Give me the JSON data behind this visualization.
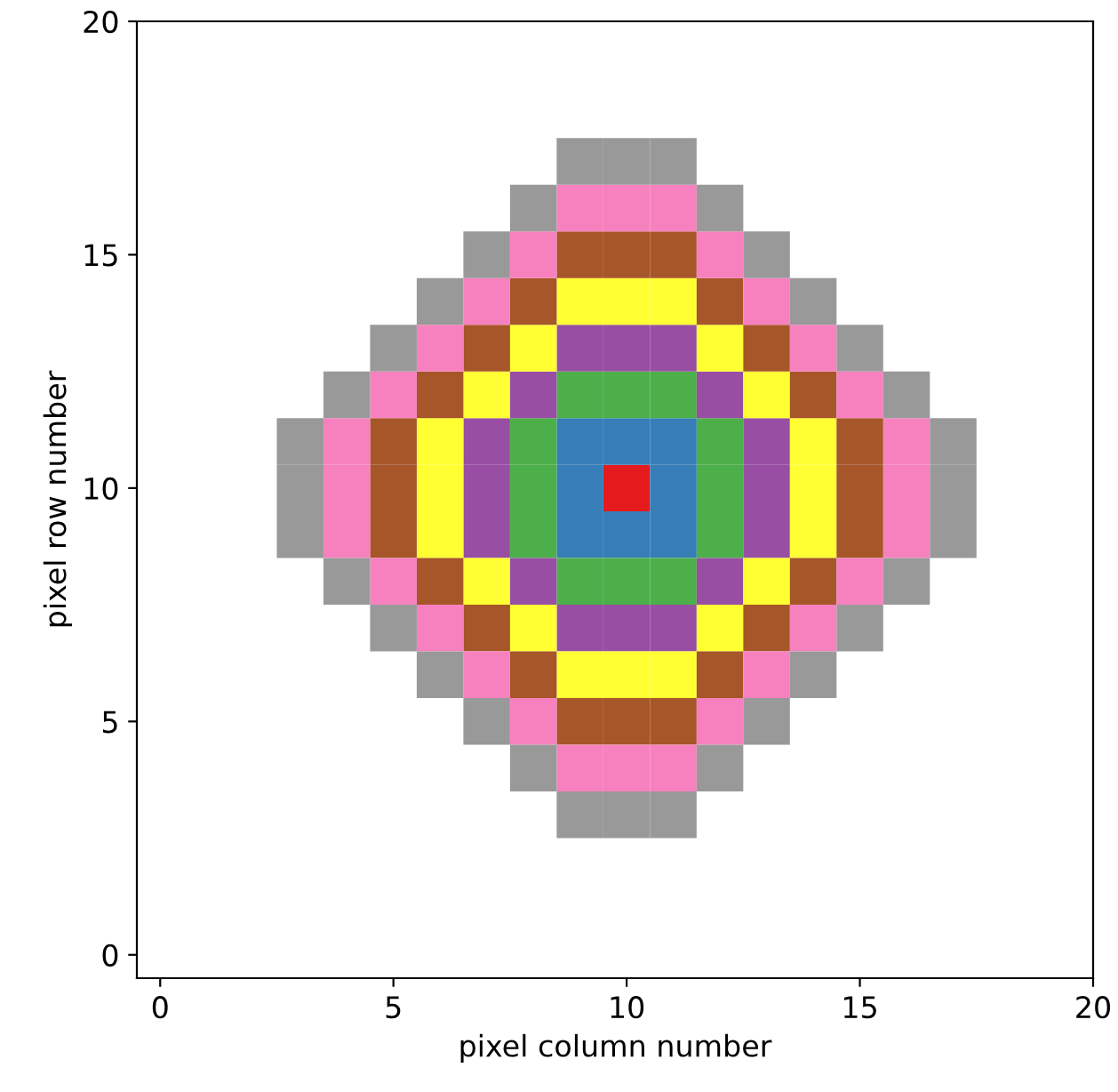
{
  "chart_data": {
    "type": "scatter",
    "xlabel": "pixel column number",
    "ylabel": "pixel row number",
    "xlim": [
      -0.5,
      20
    ],
    "ylim": [
      -0.5,
      20
    ],
    "xticks": [
      0,
      5,
      10,
      15,
      20
    ],
    "yticks": [
      0,
      5,
      10,
      15,
      20
    ],
    "marker": "square",
    "series": [
      {
        "color": "#e41a1c",
        "x": [
          10
        ],
        "values": [
          10
        ]
      },
      {
        "color": "#377eb8",
        "x": [
          9,
          10,
          11,
          9,
          11,
          9,
          10,
          11
        ],
        "values": [
          9,
          9,
          9,
          10,
          10,
          11,
          11,
          11
        ]
      },
      {
        "color": "#4daf4a",
        "x": [
          9,
          10,
          11,
          9,
          10,
          11,
          8,
          12,
          8,
          12,
          8,
          12
        ],
        "values": [
          12,
          12,
          12,
          8,
          8,
          8,
          9,
          9,
          10,
          10,
          11,
          11
        ]
      },
      {
        "color": "#984ea3",
        "x": [
          9,
          10,
          11,
          9,
          10,
          11,
          8,
          12,
          8,
          12,
          7,
          13,
          7,
          13,
          7,
          13
        ],
        "values": [
          13,
          13,
          13,
          7,
          7,
          7,
          12,
          12,
          8,
          8,
          9,
          9,
          10,
          10,
          11,
          11
        ]
      },
      {
        "color": "#ffff33",
        "x": [
          9,
          10,
          11,
          9,
          10,
          11,
          8,
          12,
          8,
          12,
          7,
          13,
          7,
          13,
          6,
          14,
          6,
          14,
          6,
          14
        ],
        "values": [
          14,
          14,
          14,
          6,
          6,
          6,
          13,
          13,
          7,
          7,
          12,
          12,
          8,
          8,
          9,
          9,
          10,
          10,
          11,
          11
        ]
      },
      {
        "color": "#a65628",
        "x": [
          9,
          10,
          11,
          9,
          10,
          11,
          8,
          12,
          8,
          12,
          7,
          13,
          7,
          13,
          6,
          14,
          6,
          14,
          5,
          15,
          5,
          15,
          5,
          15
        ],
        "values": [
          15,
          15,
          15,
          5,
          5,
          5,
          14,
          14,
          6,
          6,
          13,
          13,
          7,
          7,
          12,
          12,
          8,
          8,
          9,
          9,
          10,
          10,
          11,
          11
        ]
      },
      {
        "color": "#f781bf",
        "x": [
          9,
          10,
          11,
          9,
          10,
          11,
          8,
          12,
          8,
          12,
          7,
          13,
          7,
          13,
          6,
          14,
          6,
          14,
          5,
          15,
          5,
          15,
          4,
          16,
          4,
          16,
          4,
          16
        ],
        "values": [
          16,
          16,
          16,
          4,
          4,
          4,
          15,
          15,
          5,
          5,
          14,
          14,
          6,
          6,
          13,
          13,
          7,
          7,
          12,
          12,
          8,
          8,
          9,
          9,
          10,
          10,
          11,
          11
        ]
      },
      {
        "color": "#999999",
        "x": [
          9,
          10,
          11,
          9,
          10,
          11,
          8,
          12,
          8,
          12,
          7,
          13,
          7,
          13,
          6,
          14,
          6,
          14,
          5,
          15,
          5,
          15,
          4,
          16,
          4,
          16,
          3,
          17,
          3,
          17,
          3,
          17
        ],
        "values": [
          17,
          17,
          17,
          3,
          3,
          3,
          16,
          16,
          4,
          4,
          15,
          15,
          5,
          5,
          14,
          14,
          6,
          6,
          13,
          13,
          7,
          7,
          12,
          12,
          8,
          8,
          9,
          9,
          10,
          10,
          11,
          11
        ]
      }
    ]
  }
}
